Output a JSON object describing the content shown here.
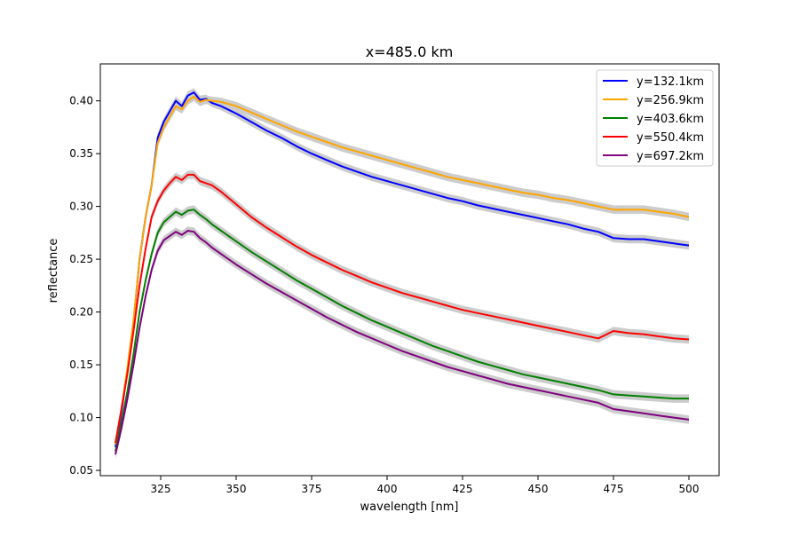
{
  "chart_data": {
    "type": "line",
    "title": "x=485.0 km",
    "xlabel": "wavelength [nm]",
    "ylabel": "reflectance",
    "xlim": [
      305,
      510
    ],
    "ylim": [
      0.045,
      0.435
    ],
    "xticks": [
      325,
      350,
      375,
      400,
      425,
      450,
      475,
      500
    ],
    "xtick_labels": [
      "325",
      "350",
      "375",
      "400",
      "425",
      "450",
      "475",
      "500"
    ],
    "yticks": [
      0.05,
      0.1,
      0.15,
      0.2,
      0.25,
      0.3,
      0.35,
      0.4
    ],
    "ytick_labels": [
      "0.05",
      "0.10",
      "0.15",
      "0.20",
      "0.25",
      "0.30",
      "0.35",
      "0.40"
    ],
    "grid": false,
    "legend_position": "top-right",
    "uncertainty_band_color": "#cccccc",
    "series": [
      {
        "name": "y=132.1km",
        "color": "#0000ff",
        "x": [
          310,
          312,
          314,
          316,
          318,
          320,
          322,
          324,
          326,
          328,
          330,
          332,
          334,
          336,
          338,
          340,
          342,
          345,
          350,
          355,
          360,
          365,
          370,
          375,
          380,
          385,
          390,
          395,
          400,
          405,
          410,
          415,
          420,
          425,
          430,
          435,
          440,
          445,
          450,
          455,
          460,
          465,
          470,
          475,
          480,
          485,
          490,
          495,
          500
        ],
        "values": [
          0.072,
          0.105,
          0.145,
          0.19,
          0.25,
          0.29,
          0.32,
          0.365,
          0.38,
          0.39,
          0.4,
          0.395,
          0.405,
          0.408,
          0.401,
          0.402,
          0.398,
          0.395,
          0.388,
          0.38,
          0.372,
          0.365,
          0.357,
          0.35,
          0.344,
          0.338,
          0.333,
          0.328,
          0.324,
          0.32,
          0.316,
          0.312,
          0.308,
          0.305,
          0.301,
          0.298,
          0.295,
          0.292,
          0.289,
          0.286,
          0.283,
          0.279,
          0.276,
          0.27,
          0.269,
          0.269,
          0.267,
          0.265,
          0.263
        ]
      },
      {
        "name": "y=256.9km",
        "color": "#ffa500",
        "x": [
          310,
          312,
          314,
          316,
          318,
          320,
          322,
          324,
          326,
          328,
          330,
          332,
          334,
          336,
          338,
          340,
          342,
          345,
          350,
          355,
          360,
          365,
          370,
          375,
          380,
          385,
          390,
          395,
          400,
          405,
          410,
          415,
          420,
          425,
          430,
          435,
          440,
          445,
          450,
          455,
          460,
          465,
          470,
          475,
          480,
          485,
          490,
          495,
          500
        ],
        "values": [
          0.075,
          0.108,
          0.148,
          0.192,
          0.25,
          0.29,
          0.32,
          0.36,
          0.375,
          0.385,
          0.395,
          0.392,
          0.4,
          0.404,
          0.399,
          0.401,
          0.4,
          0.399,
          0.395,
          0.389,
          0.383,
          0.377,
          0.371,
          0.366,
          0.361,
          0.356,
          0.352,
          0.348,
          0.344,
          0.34,
          0.336,
          0.332,
          0.328,
          0.325,
          0.322,
          0.319,
          0.316,
          0.313,
          0.311,
          0.308,
          0.306,
          0.303,
          0.3,
          0.297,
          0.297,
          0.297,
          0.295,
          0.293,
          0.29
        ]
      },
      {
        "name": "y=403.6km",
        "color": "#008000",
        "x": [
          310,
          312,
          314,
          316,
          318,
          320,
          322,
          324,
          326,
          328,
          330,
          332,
          334,
          336,
          338,
          340,
          342,
          345,
          350,
          355,
          360,
          365,
          370,
          375,
          380,
          385,
          390,
          395,
          400,
          405,
          410,
          415,
          420,
          425,
          430,
          435,
          440,
          445,
          450,
          455,
          460,
          465,
          470,
          475,
          480,
          485,
          490,
          495,
          500
        ],
        "values": [
          0.068,
          0.095,
          0.125,
          0.16,
          0.2,
          0.23,
          0.255,
          0.275,
          0.285,
          0.29,
          0.295,
          0.292,
          0.296,
          0.297,
          0.292,
          0.288,
          0.283,
          0.277,
          0.267,
          0.257,
          0.248,
          0.239,
          0.23,
          0.222,
          0.214,
          0.206,
          0.199,
          0.192,
          0.186,
          0.18,
          0.174,
          0.168,
          0.163,
          0.158,
          0.153,
          0.149,
          0.145,
          0.141,
          0.138,
          0.135,
          0.132,
          0.129,
          0.126,
          0.122,
          0.121,
          0.12,
          0.119,
          0.118,
          0.118
        ]
      },
      {
        "name": "y=550.4km",
        "color": "#ff0000",
        "x": [
          310,
          312,
          314,
          316,
          318,
          320,
          322,
          324,
          326,
          328,
          330,
          332,
          334,
          336,
          338,
          340,
          342,
          345,
          350,
          355,
          360,
          365,
          370,
          375,
          380,
          385,
          390,
          395,
          400,
          405,
          410,
          415,
          420,
          425,
          430,
          435,
          440,
          445,
          450,
          455,
          460,
          465,
          470,
          475,
          480,
          485,
          490,
          495,
          500
        ],
        "values": [
          0.076,
          0.108,
          0.142,
          0.182,
          0.225,
          0.26,
          0.29,
          0.305,
          0.315,
          0.322,
          0.328,
          0.325,
          0.33,
          0.33,
          0.324,
          0.322,
          0.32,
          0.314,
          0.302,
          0.29,
          0.28,
          0.271,
          0.262,
          0.254,
          0.247,
          0.24,
          0.234,
          0.228,
          0.223,
          0.218,
          0.214,
          0.21,
          0.206,
          0.202,
          0.199,
          0.196,
          0.193,
          0.19,
          0.187,
          0.184,
          0.181,
          0.178,
          0.175,
          0.182,
          0.18,
          0.179,
          0.177,
          0.175,
          0.174
        ]
      },
      {
        "name": "y=697.2km",
        "color": "#800080",
        "x": [
          310,
          312,
          314,
          316,
          318,
          320,
          322,
          324,
          326,
          328,
          330,
          332,
          334,
          336,
          338,
          340,
          342,
          345,
          350,
          355,
          360,
          365,
          370,
          375,
          380,
          385,
          390,
          395,
          400,
          405,
          410,
          415,
          420,
          425,
          430,
          435,
          440,
          445,
          450,
          455,
          460,
          465,
          470,
          475,
          480,
          485,
          490,
          495,
          500
        ],
        "values": [
          0.065,
          0.09,
          0.118,
          0.15,
          0.185,
          0.215,
          0.24,
          0.258,
          0.268,
          0.272,
          0.276,
          0.273,
          0.277,
          0.276,
          0.27,
          0.266,
          0.261,
          0.255,
          0.245,
          0.236,
          0.227,
          0.219,
          0.211,
          0.203,
          0.195,
          0.188,
          0.181,
          0.175,
          0.169,
          0.163,
          0.158,
          0.153,
          0.148,
          0.144,
          0.14,
          0.136,
          0.132,
          0.129,
          0.126,
          0.123,
          0.12,
          0.117,
          0.114,
          0.108,
          0.106,
          0.104,
          0.102,
          0.1,
          0.098
        ]
      }
    ]
  }
}
